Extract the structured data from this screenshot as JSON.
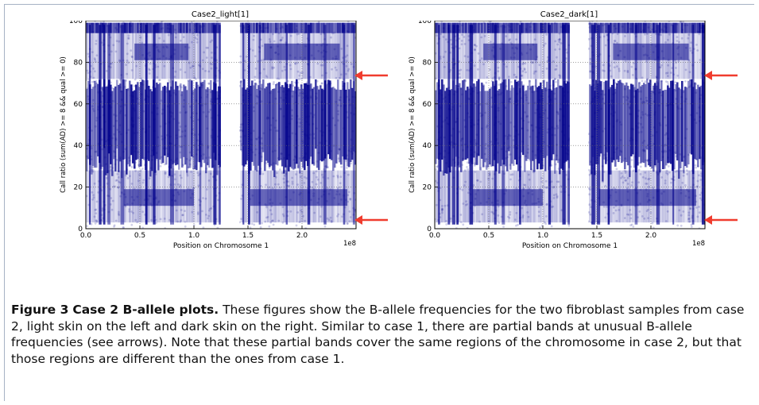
{
  "figure": {
    "label": "Figure 3",
    "title": "Case 2 B-allele plots.",
    "caption": "These figures show the B-allele frequencies for the two fibroblast samples from case 2, light skin on the left and dark skin on the right. Similar to case 1, there are partial bands at unusual B-allele frequencies (see arrows). Note that these partial bands cover the same regions of the chromosome in case 2, but that those regions are different than the ones from case 1."
  },
  "chart_data": [
    {
      "type": "scatter",
      "title": "Case2_light[1]",
      "xlabel": "Position on Chromosome 1",
      "ylabel": "Call ratio (sum(AD) >= 8 && qual >= 0)",
      "x_offset_label": "1e8",
      "xlim": [
        0.0,
        2.5
      ],
      "ylim": [
        0,
        100
      ],
      "xticks": [
        "0.0",
        "0.5",
        "1.0",
        "1.5",
        "2.0"
      ],
      "yticks": [
        "0",
        "20",
        "40",
        "60",
        "80",
        "100"
      ],
      "grid": true,
      "color": "#00008b",
      "gap": [
        1.25,
        1.42
      ],
      "partial_bands": [
        {
          "x": [
            0.35,
            1.0
          ],
          "y": 15
        },
        {
          "x": [
            0.45,
            0.95
          ],
          "y": 85
        },
        {
          "x": [
            1.52,
            2.42
          ],
          "y": 15
        },
        {
          "x": [
            1.65,
            2.35
          ],
          "y": 85
        }
      ]
    },
    {
      "type": "scatter",
      "title": "Case2_dark[1]",
      "xlabel": "Position on Chromosome 1",
      "ylabel": "Call ratio (sum(AD) >= 8 && qual >= 0)",
      "x_offset_label": "1e8",
      "xlim": [
        0.0,
        2.5
      ],
      "ylim": [
        0,
        100
      ],
      "xticks": [
        "0.0",
        "0.5",
        "1.0",
        "1.5",
        "2.0"
      ],
      "yticks": [
        "0",
        "20",
        "40",
        "60",
        "80",
        "100"
      ],
      "grid": true,
      "color": "#00008b",
      "gap": [
        1.25,
        1.42
      ],
      "partial_bands": [
        {
          "x": [
            0.35,
            1.0
          ],
          "y": 15
        },
        {
          "x": [
            0.45,
            0.95
          ],
          "y": 85
        },
        {
          "x": [
            1.52,
            2.42
          ],
          "y": 15
        },
        {
          "x": [
            1.65,
            2.35
          ],
          "y": 85
        }
      ]
    }
  ],
  "arrows": {
    "color": "#f03c2e",
    "marked_values": [
      85,
      15
    ]
  }
}
